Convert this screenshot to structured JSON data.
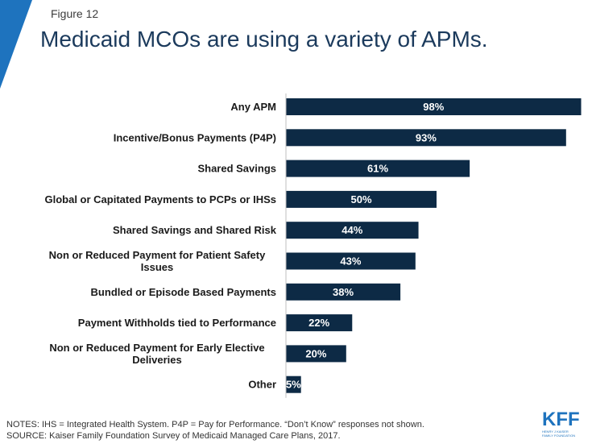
{
  "figure_label": "Figure 12",
  "title": "Medicaid MCOs are using a variety of APMs.",
  "chart_data": {
    "type": "bar",
    "orientation": "horizontal",
    "categories": [
      "Any APM",
      "Incentive/Bonus Payments (P4P)",
      "Shared Savings",
      "Global or Capitated Payments to PCPs or IHSs",
      "Shared Savings and Shared Risk",
      "Non or Reduced Payment for Patient Safety Issues",
      "Bundled or Episode Based Payments",
      "Payment Withholds tied to Performance",
      "Non or Reduced Payment for Early Elective Deliveries",
      "Other"
    ],
    "values": [
      98,
      93,
      61,
      50,
      44,
      43,
      38,
      22,
      20,
      5
    ],
    "data_labels": [
      "98%",
      "93%",
      "61%",
      "50%",
      "44%",
      "43%",
      "38%",
      "22%",
      "20%",
      "5%"
    ],
    "xlim": [
      0,
      100
    ],
    "bar_color": "#0d2a45"
  },
  "notes": "NOTES: IHS = Integrated Health System. P4P = Pay for Performance. “Don’t Know” responses not shown.",
  "source": "SOURCE: Kaiser Family Foundation Survey of Medicaid Managed Care Plans, 2017.",
  "logo": {
    "main": "KFF",
    "sub": "HENRY J KAISER\nFAMILY FOUNDATION"
  },
  "colors": {
    "accent": "#1e73be",
    "title": "#1b3a5c",
    "bar": "#0d2a45"
  }
}
